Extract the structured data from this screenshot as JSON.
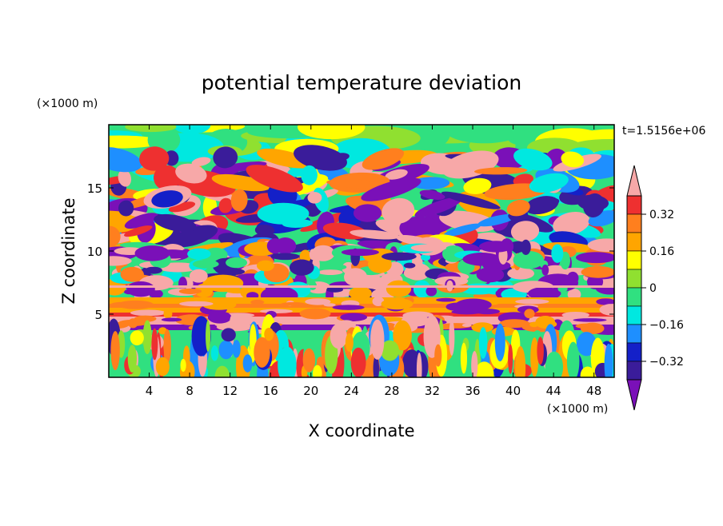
{
  "chart_data": {
    "type": "heatmap",
    "title": "potential temperature deviation",
    "xlabel": "X coordinate",
    "ylabel": "Z coordinate",
    "x_unit": "(×1000 m)",
    "y_unit": "(×1000 m)",
    "time_label": "t=1.5156e+06",
    "xlim": [
      0,
      50
    ],
    "ylim": [
      0,
      20
    ],
    "x_ticks": [
      "4",
      "8",
      "12",
      "16",
      "20",
      "24",
      "28",
      "32",
      "36",
      "40",
      "44",
      "48"
    ],
    "y_ticks": [
      "5",
      "10",
      "15"
    ],
    "colorbar": {
      "tick_labels": [
        "0.32",
        "0.16",
        "0",
        "−0.16",
        "−0.32"
      ],
      "bins": [
        {
          "color": "#f7a8a8"
        },
        {
          "color": "#ee3030"
        },
        {
          "color": "#ff7f1e"
        },
        {
          "color": "#ffa500"
        },
        {
          "color": "#ffff00"
        },
        {
          "color": "#90e030"
        },
        {
          "color": "#30e080"
        },
        {
          "color": "#00e8e0"
        },
        {
          "color": "#1e8fff"
        },
        {
          "color": "#1420c8"
        },
        {
          "color": "#3a1c9a"
        },
        {
          "color": "#7a10b8"
        }
      ]
    },
    "bands": [
      {
        "z_min": 0,
        "z_max": 3.5,
        "pattern": "vertical plumes"
      },
      {
        "z_min": 3.5,
        "z_max": 6.5,
        "pattern": "layered stable band"
      },
      {
        "z_min": 6.5,
        "z_max": 10,
        "pattern": "turbulent mixed layer"
      },
      {
        "z_min": 10,
        "z_max": 18,
        "pattern": "wave cells"
      },
      {
        "z_min": 18,
        "z_max": 20,
        "pattern": "smooth upper layer"
      }
    ]
  }
}
